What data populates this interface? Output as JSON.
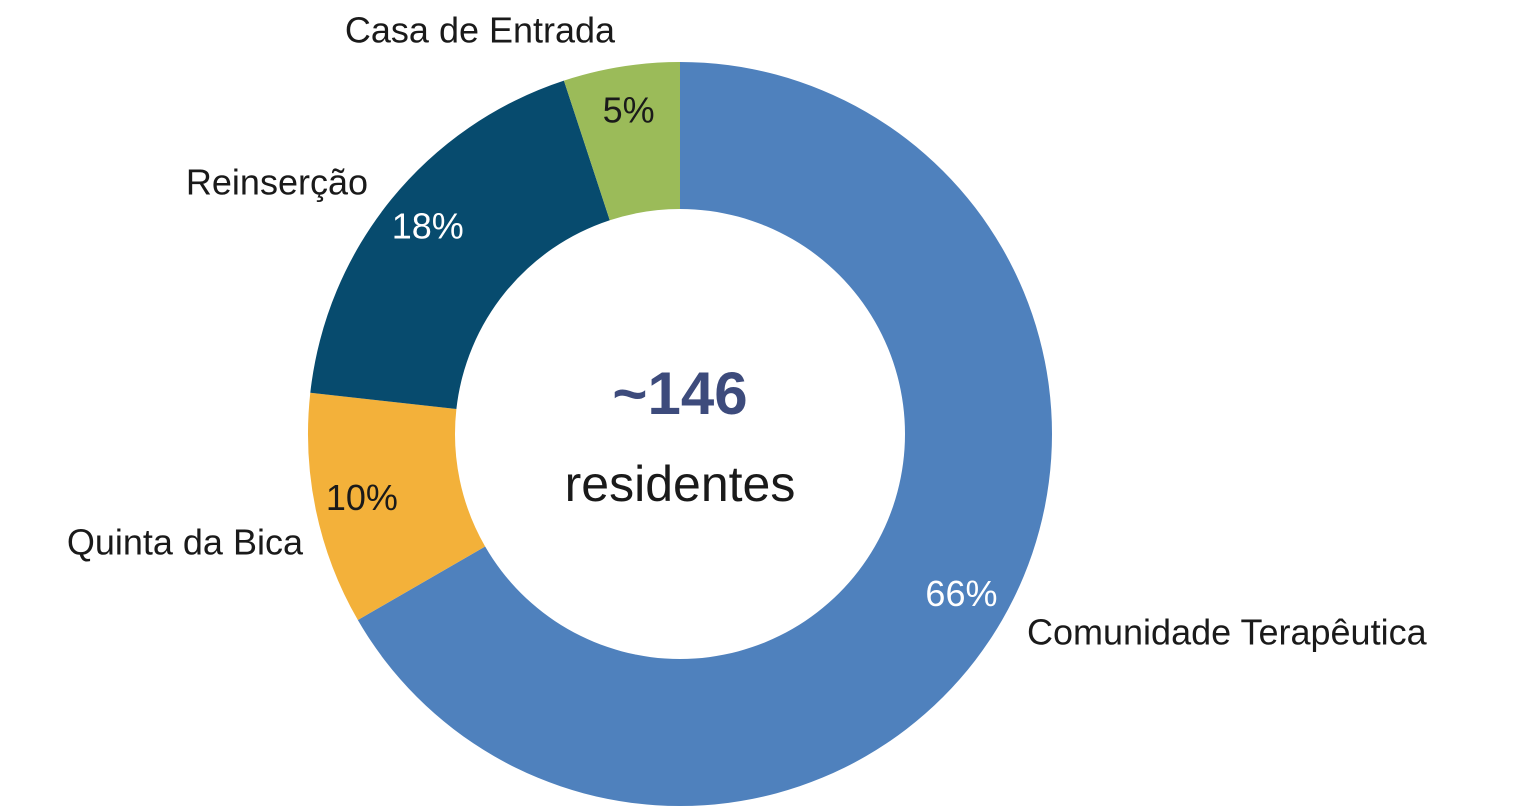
{
  "chart_data": {
    "type": "donut",
    "categories": [
      "Comunidade Terapêutica",
      "Quinta da Bica",
      "Reinserção",
      "Casa de Entrada"
    ],
    "values": [
      66,
      10,
      18,
      5
    ],
    "value_labels": [
      "66%",
      "10%",
      "18%",
      "5%"
    ],
    "colors": [
      "#4f81bd",
      "#f3b13a",
      "#074b6e",
      "#9bbb59"
    ],
    "value_label_colors": [
      "#ffffff",
      "#1a1a1a",
      "#ffffff",
      "#1a1a1a"
    ],
    "center_value": "~146",
    "center_text": "residentes"
  }
}
